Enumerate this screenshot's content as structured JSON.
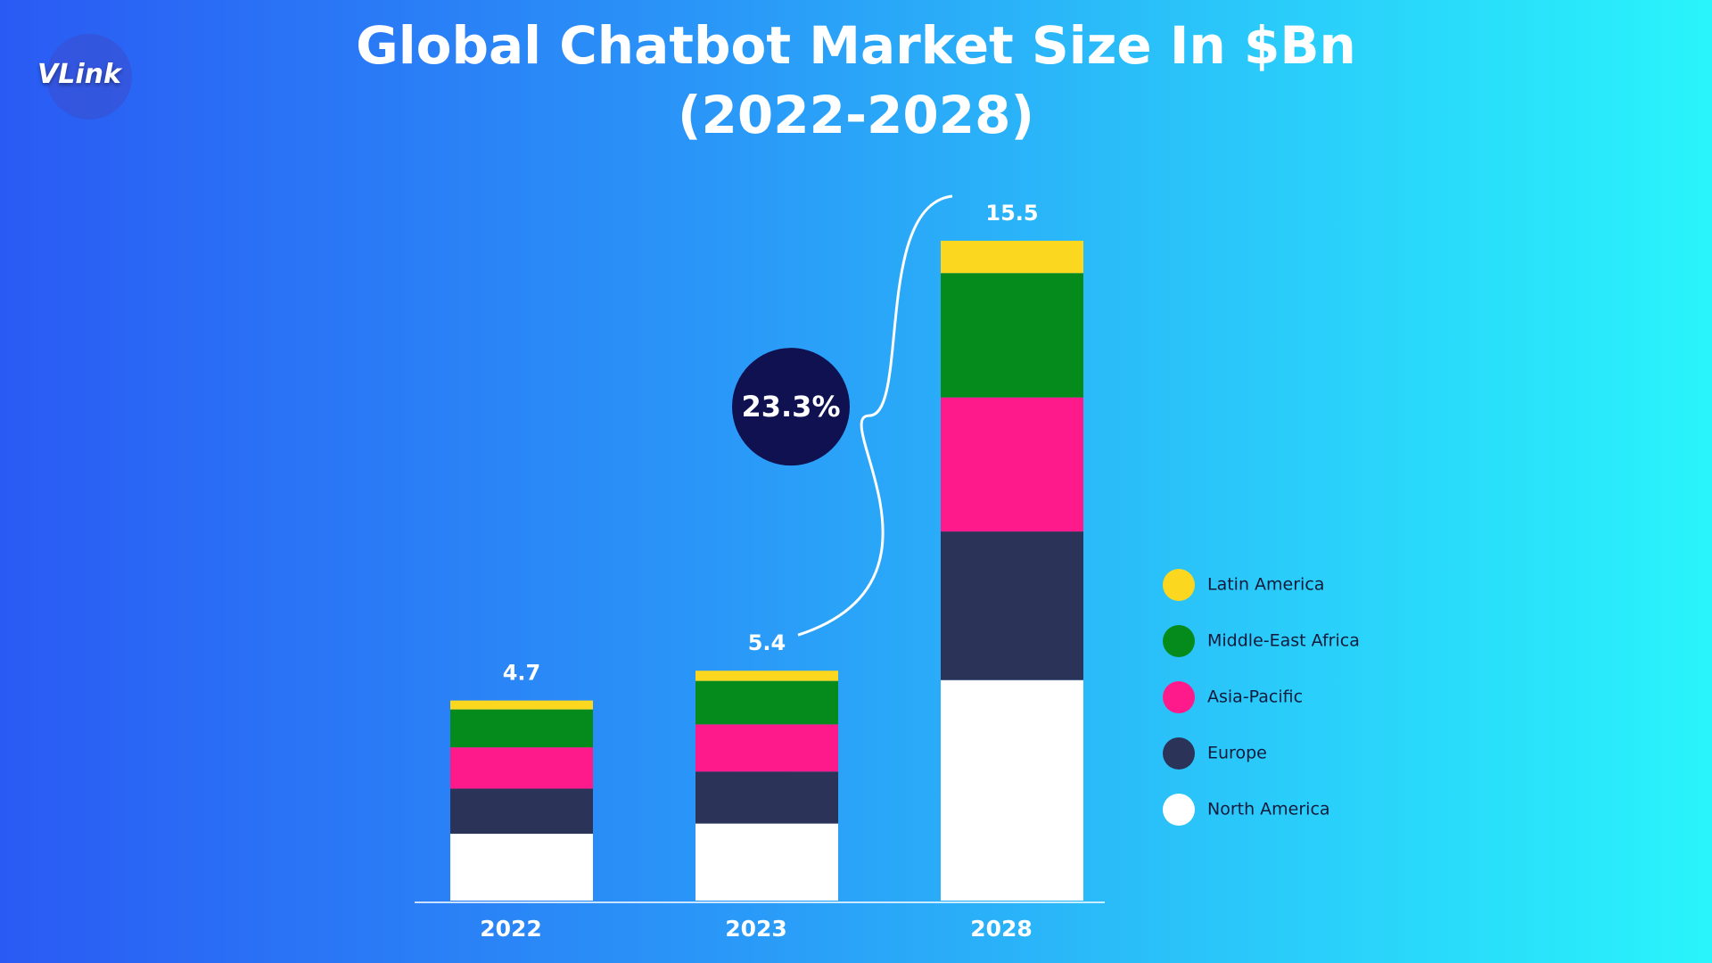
{
  "chart_data": {
    "type": "stacked_bar",
    "title": "Global Chatbot Market Size In $Bn (2022-2028)",
    "logo": "VLink",
    "annotation": "23.3%",
    "categories": [
      "2022",
      "2023",
      "2028"
    ],
    "totals": [
      4.7,
      5.4,
      15.5
    ],
    "series": [
      {
        "name": "North America",
        "color": "#ffffff",
        "values": [
          1.57,
          1.81,
          5.18
        ]
      },
      {
        "name": "Europe",
        "color": "#2c3359",
        "values": [
          1.06,
          1.22,
          3.49
        ]
      },
      {
        "name": "Asia-Pacific",
        "color": "#ff1a8c",
        "values": [
          0.97,
          1.11,
          3.15
        ]
      },
      {
        "name": "Middle-East Africa",
        "color": "#058a1c",
        "values": [
          0.89,
          1.02,
          2.92
        ]
      },
      {
        "name": "Latin America",
        "color": "#fbd71f",
        "values": [
          0.21,
          0.24,
          0.76
        ]
      }
    ]
  }
}
